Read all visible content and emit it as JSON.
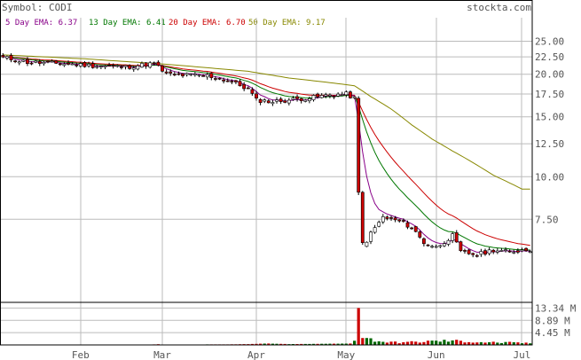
{
  "header": {
    "symbol_text": "Symbol: CODI",
    "site_text": "stockta.com",
    "legend": [
      {
        "text": "5 Day EMA: 6.37",
        "color": "#cc0000"
      },
      {
        "text": "13 Day EMA: 6.41",
        "color": "#007700"
      },
      {
        "text": "20 Day EMA: 6.70",
        "color": "#cc0000"
      },
      {
        "text": "50 Day EMA: 9.17",
        "color": "#888800"
      }
    ]
  },
  "chart_data": {
    "type": "candlestick",
    "price_ticks": [
      "25.00",
      "22.50",
      "20.00",
      "17.50",
      "15.00",
      "12.50",
      "10.00",
      "7.50"
    ],
    "price_tick_values": [
      25,
      22.5,
      20,
      17.5,
      15,
      12.5,
      10,
      7.5
    ],
    "price_range": [
      4.3,
      26.0
    ],
    "log_scale": true,
    "volume_ticks": [
      "13.34 M",
      "8.89 M",
      "4.45 M"
    ],
    "volume_tick_values": [
      13.34,
      8.89,
      4.45
    ],
    "volume_unit": "M",
    "volume_range": [
      0,
      13.8
    ],
    "months": [
      "Feb",
      "Mar",
      "Apr",
      "May",
      "Jun",
      "Jul"
    ],
    "month_day_index": [
      19,
      39,
      62,
      84,
      106,
      127
    ],
    "colors": {
      "up": "#ffffff",
      "down": "#cc0000",
      "wick": "#000000",
      "volume_up": "#006600",
      "volume_down": "#cc0000",
      "ema5": "#880088",
      "ema13": "#007700",
      "ema20": "#cc0000",
      "ema50": "#888800",
      "grid": "#bbbbbb",
      "frame": "#000000"
    },
    "anchors": {
      "close": [
        [
          0,
          22.4
        ],
        [
          6,
          21.7
        ],
        [
          14,
          21.5
        ],
        [
          22,
          21.2
        ],
        [
          30,
          21.0
        ],
        [
          34,
          21.3
        ],
        [
          37,
          21.5
        ],
        [
          40,
          20.0
        ],
        [
          44,
          19.9
        ],
        [
          50,
          19.8
        ],
        [
          56,
          19.0
        ],
        [
          60,
          18.1
        ],
        [
          62,
          16.8
        ],
        [
          66,
          16.6
        ],
        [
          72,
          16.9
        ],
        [
          76,
          17.1
        ],
        [
          80,
          17.4
        ],
        [
          84,
          17.5
        ],
        [
          86,
          17.0
        ],
        [
          87,
          9.0
        ],
        [
          88,
          6.2
        ],
        [
          90,
          6.8
        ],
        [
          93,
          7.6
        ],
        [
          97,
          7.4
        ],
        [
          100,
          7.1
        ],
        [
          103,
          6.4
        ],
        [
          106,
          6.2
        ],
        [
          110,
          6.7
        ],
        [
          112,
          6.0
        ],
        [
          116,
          5.9
        ],
        [
          120,
          6.1
        ],
        [
          124,
          6.0
        ],
        [
          127,
          6.1
        ]
      ],
      "ema50": [
        [
          0,
          22.8
        ],
        [
          20,
          22.2
        ],
        [
          40,
          21.4
        ],
        [
          60,
          20.4
        ],
        [
          70,
          19.5
        ],
        [
          80,
          18.9
        ],
        [
          86,
          18.5
        ],
        [
          90,
          17.2
        ],
        [
          95,
          15.8
        ],
        [
          100,
          14.2
        ],
        [
          105,
          12.9
        ],
        [
          110,
          11.9
        ],
        [
          115,
          11.0
        ],
        [
          120,
          10.1
        ],
        [
          127,
          9.2
        ]
      ],
      "volume": [
        [
          0,
          0.02
        ],
        [
          35,
          0.05
        ],
        [
          37,
          0.2
        ],
        [
          38,
          0.25
        ],
        [
          40,
          0.1
        ],
        [
          44,
          0.15
        ],
        [
          55,
          0.2
        ],
        [
          60,
          0.3
        ],
        [
          62,
          0.4
        ],
        [
          65,
          0.5
        ],
        [
          70,
          0.3
        ],
        [
          85,
          0.5
        ],
        [
          86,
          1.5
        ],
        [
          87,
          13.34
        ],
        [
          88,
          2.5
        ],
        [
          89,
          2.2
        ],
        [
          90,
          2.0
        ],
        [
          92,
          1.4
        ],
        [
          95,
          0.9
        ],
        [
          100,
          1.0
        ],
        [
          103,
          1.2
        ],
        [
          106,
          1.4
        ],
        [
          110,
          1.5
        ],
        [
          115,
          1.1
        ],
        [
          120,
          0.9
        ],
        [
          124,
          0.8
        ],
        [
          127,
          0.7
        ]
      ]
    }
  }
}
